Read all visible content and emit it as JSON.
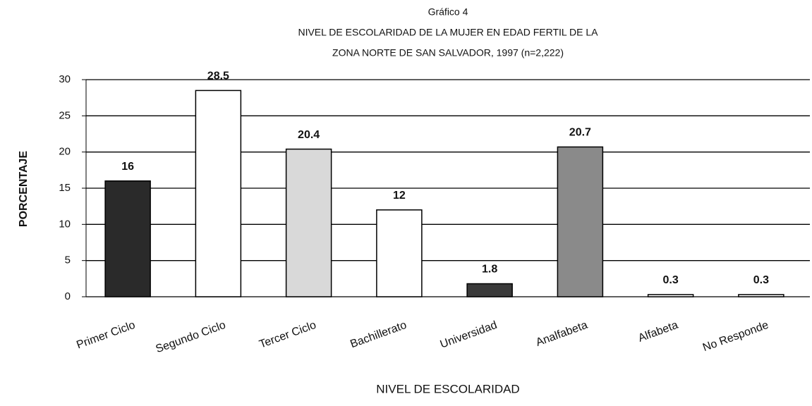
{
  "chart_data": {
    "type": "bar",
    "title": "Gráfico 4",
    "subtitle": [
      "NIVEL DE ESCOLARIDAD DE LA MUJER EN EDAD FERTIL DE LA",
      "ZONA NORTE DE SAN SALVADOR, 1997 (n=2,222)"
    ],
    "x_label": "NIVEL DE ESCOLARIDAD",
    "y_label": "PORCENTAJE",
    "categories": [
      "Primer Ciclo",
      "Segundo Ciclo",
      "Tercer Ciclo",
      "Bachillerato",
      "Universidad",
      "Analfabeta",
      "Alfabeta",
      "No Responde"
    ],
    "values": [
      16,
      28.5,
      20.4,
      12,
      1.8,
      20.7,
      0.3,
      0.3
    ],
    "colors": [
      "#2a2a2a",
      "#ffffff",
      "#d9d9d9",
      "#ffffff",
      "#3a3a3a",
      "#8a8a8a",
      "#ffffff",
      "#ffffff"
    ],
    "ylim": [
      0,
      30
    ],
    "yticks": [
      0,
      5,
      10,
      15,
      20,
      25,
      30
    ],
    "grid": true
  }
}
